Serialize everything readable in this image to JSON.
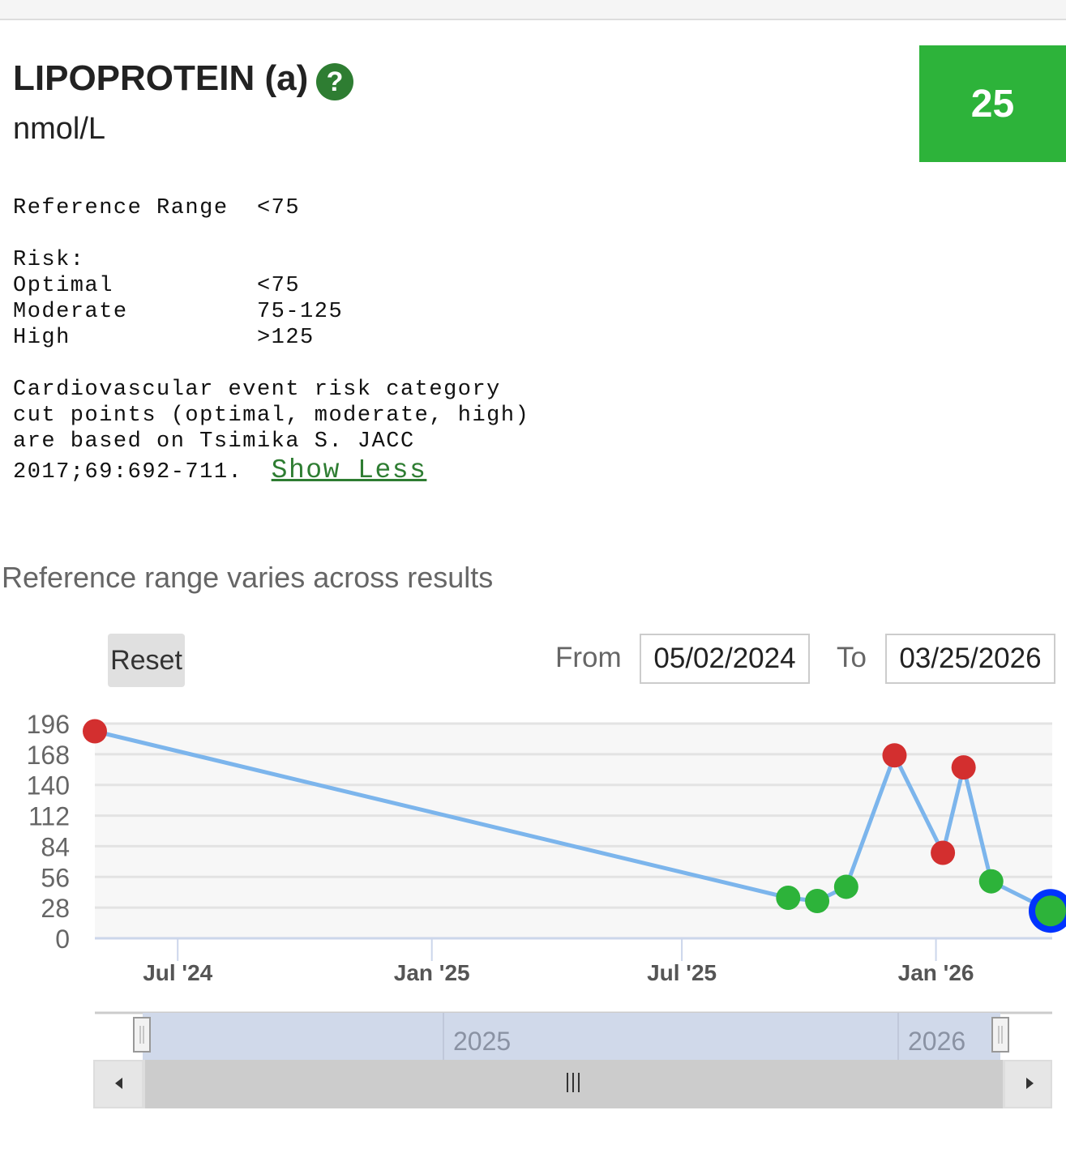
{
  "header": {
    "title": "LIPOPROTEIN (a)",
    "help_icon": "?",
    "units": "nmol/L",
    "value": "25",
    "value_color": "#2db33a"
  },
  "reference": {
    "range_line": "Reference Range  <75",
    "risk_label": "Risk:",
    "risk_rows": [
      "Optimal          <75",
      "Moderate         75-125",
      "High             >125"
    ],
    "note_lines": [
      "Cardiovascular event risk category",
      "cut points (optimal, moderate, high)",
      "are based on Tsimika S. JACC",
      "2017;69:692-711.  "
    ],
    "show_less": "Show Less"
  },
  "varies_text": "Reference range varies across results",
  "controls": {
    "reset": "Reset",
    "from_label": "From",
    "from_value": "05/02/2024",
    "to_label": "To",
    "to_value": "03/25/2026"
  },
  "chart_data": {
    "type": "line",
    "yticks": [
      0,
      28,
      56,
      84,
      112,
      140,
      168,
      196
    ],
    "ylim": [
      0,
      196
    ],
    "xticks": [
      {
        "label": "Jul '24",
        "date": "2024-07-01"
      },
      {
        "label": "Jan '25",
        "date": "2025-01-01"
      },
      {
        "label": "Jul '25",
        "date": "2025-07-01"
      },
      {
        "label": "Jan '26",
        "date": "2026-01-01"
      }
    ],
    "xlim": [
      "2024-05-02",
      "2026-03-25"
    ],
    "points": [
      {
        "date": "2024-05-02",
        "value": 189,
        "status": "high"
      },
      {
        "date": "2025-09-16",
        "value": 37,
        "status": "normal"
      },
      {
        "date": "2025-10-07",
        "value": 34,
        "status": "normal"
      },
      {
        "date": "2025-10-28",
        "value": 47,
        "status": "normal"
      },
      {
        "date": "2025-12-02",
        "value": 167,
        "status": "high"
      },
      {
        "date": "2026-01-06",
        "value": 78,
        "status": "high"
      },
      {
        "date": "2026-01-21",
        "value": 156,
        "status": "high"
      },
      {
        "date": "2026-02-10",
        "value": 52,
        "status": "normal"
      },
      {
        "date": "2026-03-25",
        "value": 25,
        "status": "normal",
        "selected": true
      }
    ],
    "colors": {
      "high": "#d32f2f",
      "normal": "#2db33a",
      "line": "#7cb5ec",
      "selected": "#0033ff"
    },
    "navigator": {
      "years": [
        "2025",
        "2026"
      ]
    }
  }
}
